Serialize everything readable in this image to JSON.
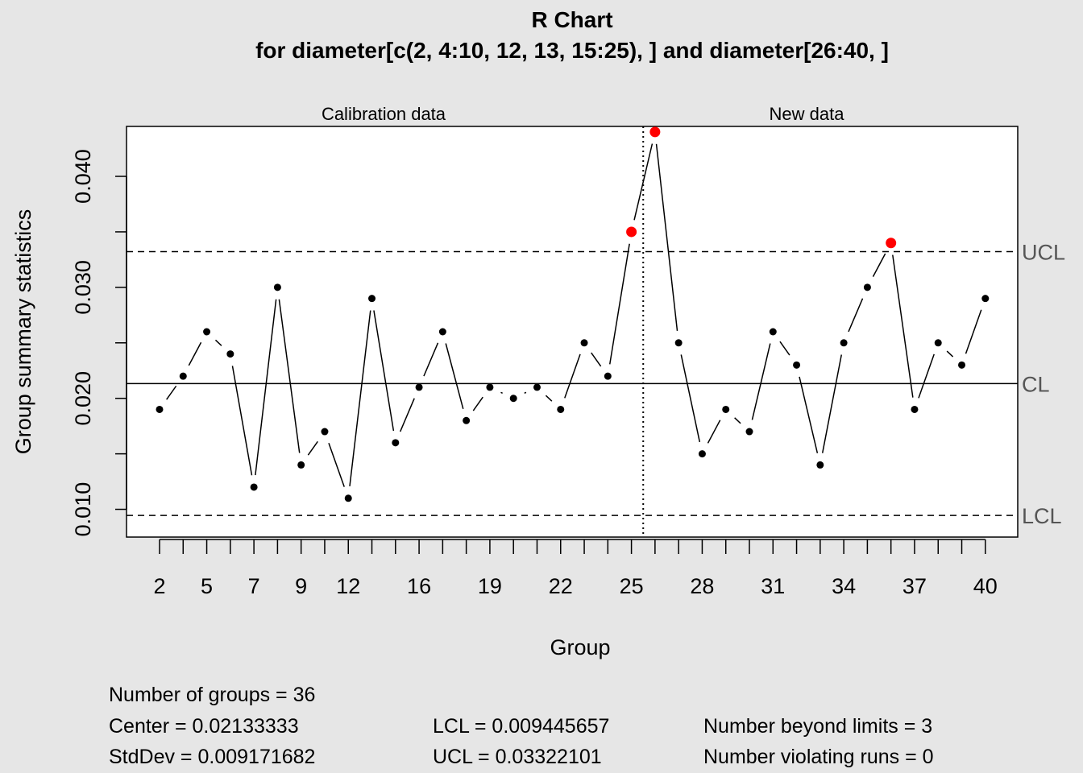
{
  "chart_data": {
    "type": "line",
    "title": "R Chart",
    "subtitle": "for diameter[c(2, 4:10, 12, 13, 15:25), ] and diameter[26:40, ]",
    "xlabel": "Group",
    "ylabel": "Group summary statistics",
    "sections": [
      "Calibration data",
      "New data"
    ],
    "x": [
      2,
      4,
      5,
      6,
      7,
      8,
      9,
      10,
      12,
      13,
      15,
      16,
      17,
      18,
      19,
      20,
      21,
      22,
      23,
      24,
      25,
      26,
      27,
      28,
      29,
      30,
      31,
      32,
      33,
      34,
      35,
      36,
      37,
      38,
      39,
      40
    ],
    "values": [
      0.019,
      0.022,
      0.026,
      0.024,
      0.012,
      0.03,
      0.014,
      0.017,
      0.011,
      0.029,
      0.016,
      0.021,
      0.026,
      0.018,
      0.021,
      0.02,
      0.021,
      0.019,
      0.025,
      0.022,
      0.035,
      0.044,
      0.025,
      0.015,
      0.019,
      0.017,
      0.026,
      0.023,
      0.014,
      0.025,
      0.03,
      0.034,
      0.019,
      0.025,
      0.023,
      0.029
    ],
    "calibration_count": 21,
    "xtick_labels": [
      "2",
      "5",
      "7",
      "9",
      "12",
      "16",
      "19",
      "22",
      "25",
      "28",
      "31",
      "34",
      "37",
      "40"
    ],
    "yticks": [
      0.01,
      0.02,
      0.03,
      0.04
    ],
    "ytick_labels": [
      "0.010",
      "0.020",
      "0.030",
      "0.040"
    ],
    "ylim": [
      0.0075,
      0.0445
    ],
    "limits": {
      "center": 0.02133333,
      "lcl": 0.009445657,
      "ucl": 0.03322101,
      "labels": {
        "ucl": "UCL",
        "cl": "CL",
        "lcl": "LCL"
      }
    },
    "colors": {
      "normal": "#000000",
      "violation": "#ff0000",
      "background": "#e6e6e6",
      "panel": "#ffffff"
    },
    "grid": false,
    "legend": "none"
  },
  "stats": {
    "groups": "Number of groups = 36",
    "center": "Center = 0.02133333",
    "stddev": "StdDev = 0.009171682",
    "lcl": "LCL = 0.009445657",
    "ucl": "UCL = 0.03322101",
    "beyond": "Number beyond limits = 3",
    "runs": "Number violating runs = 0"
  }
}
